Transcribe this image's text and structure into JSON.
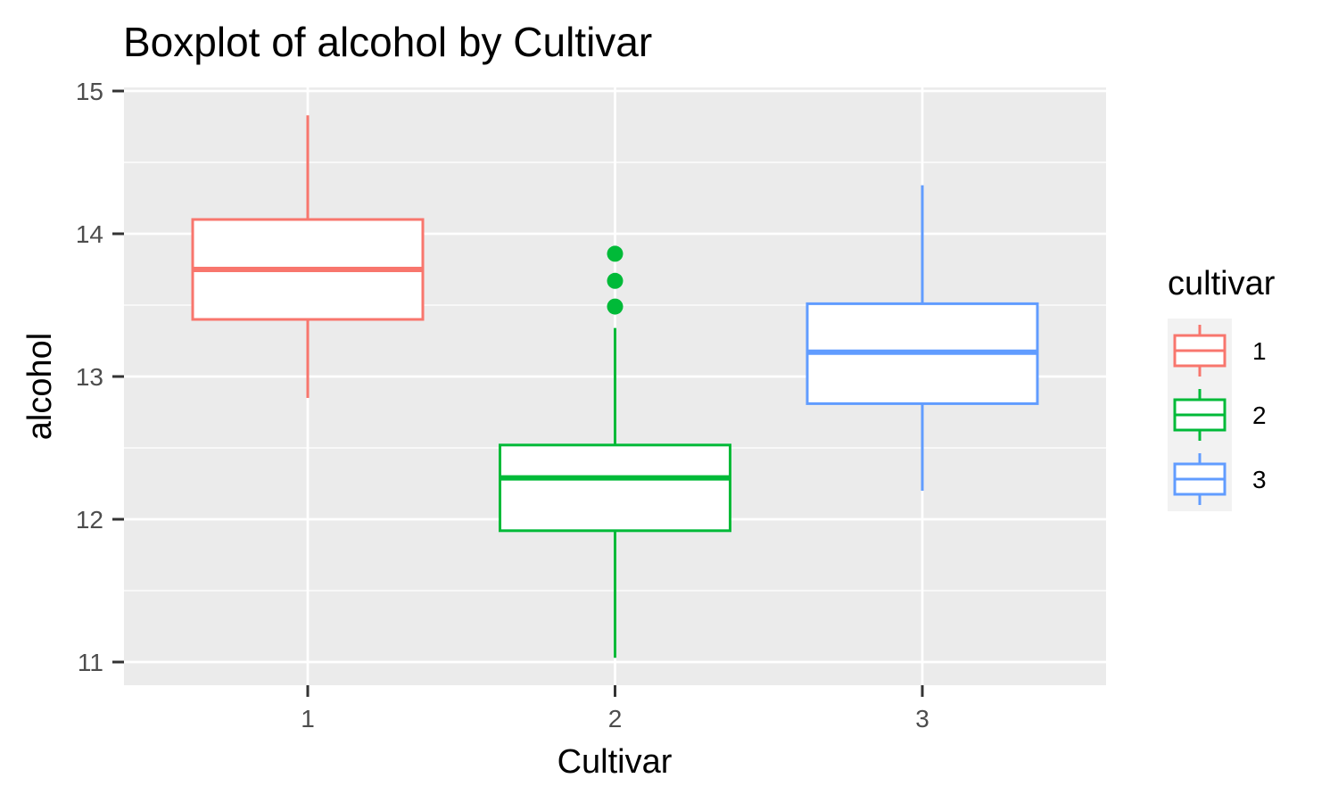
{
  "chart_data": {
    "type": "box",
    "title": "Boxplot of alcohol by Cultivar",
    "xlabel": "Cultivar",
    "ylabel": "alcohol",
    "ylim": [
      10.85,
      15.0
    ],
    "y_ticks": [
      11,
      12,
      13,
      14,
      15
    ],
    "categories": [
      "1",
      "2",
      "3"
    ],
    "grid": true,
    "legend": {
      "title": "cultivar",
      "placement": "right",
      "entries": [
        "1",
        "2",
        "3"
      ]
    },
    "colors": [
      "#F8766D",
      "#00BA38",
      "#619CFF"
    ],
    "series": [
      {
        "category": "1",
        "whisker_low": 12.85,
        "q1": 13.4,
        "median": 13.75,
        "q3": 14.1,
        "whisker_high": 14.83,
        "outliers": []
      },
      {
        "category": "2",
        "whisker_low": 11.03,
        "q1": 11.92,
        "median": 12.29,
        "q3": 12.52,
        "whisker_high": 13.34,
        "outliers": [
          13.49,
          13.67,
          13.86
        ]
      },
      {
        "category": "3",
        "whisker_low": 12.2,
        "q1": 12.81,
        "median": 13.17,
        "q3": 13.51,
        "whisker_high": 14.34,
        "outliers": []
      }
    ]
  }
}
